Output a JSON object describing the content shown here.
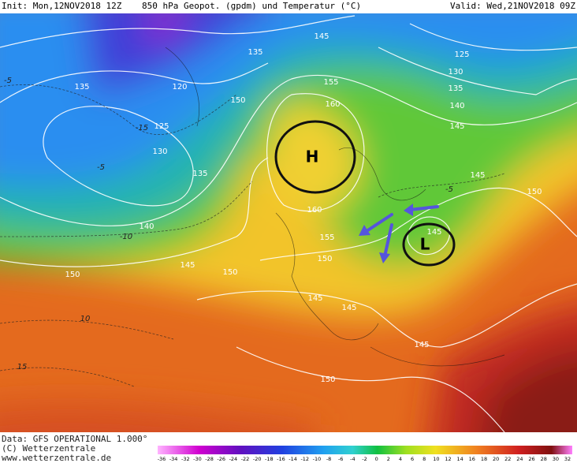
{
  "header": {
    "init": "Init: Mon,12NOV2018 12Z",
    "title": "850 hPa Geopot. (gpdm) und Temperatur (°C)",
    "valid": "Valid: Wed,21NOV2018 09Z"
  },
  "pressure_centers": [
    {
      "label": "H"
    },
    {
      "label": "L"
    }
  ],
  "geopotential_labels": [
    145,
    135,
    125,
    130,
    135,
    120,
    155,
    135,
    150,
    160,
    140,
    125,
    145,
    130,
    135,
    145,
    150,
    160,
    145,
    140,
    155,
    145,
    150,
    150,
    150,
    145,
    145,
    145,
    150
  ],
  "temperature_labels": [
    -5,
    -15,
    -10,
    -5,
    10,
    15,
    -5
  ],
  "footer": {
    "data": "Data: GFS OPERATIONAL 1.000°",
    "copyright": "(C) Wetterzentrale",
    "url": "www.wetterzentrale.de"
  },
  "colorbar": {
    "labels": [
      -36,
      -34,
      -32,
      -30,
      -28,
      -26,
      -24,
      -22,
      -20,
      -18,
      -16,
      -14,
      -12,
      -10,
      -8,
      -6,
      -4,
      -2,
      0,
      2,
      4,
      6,
      8,
      10,
      12,
      14,
      16,
      18,
      20,
      22,
      24,
      26,
      28,
      30,
      32
    ]
  }
}
